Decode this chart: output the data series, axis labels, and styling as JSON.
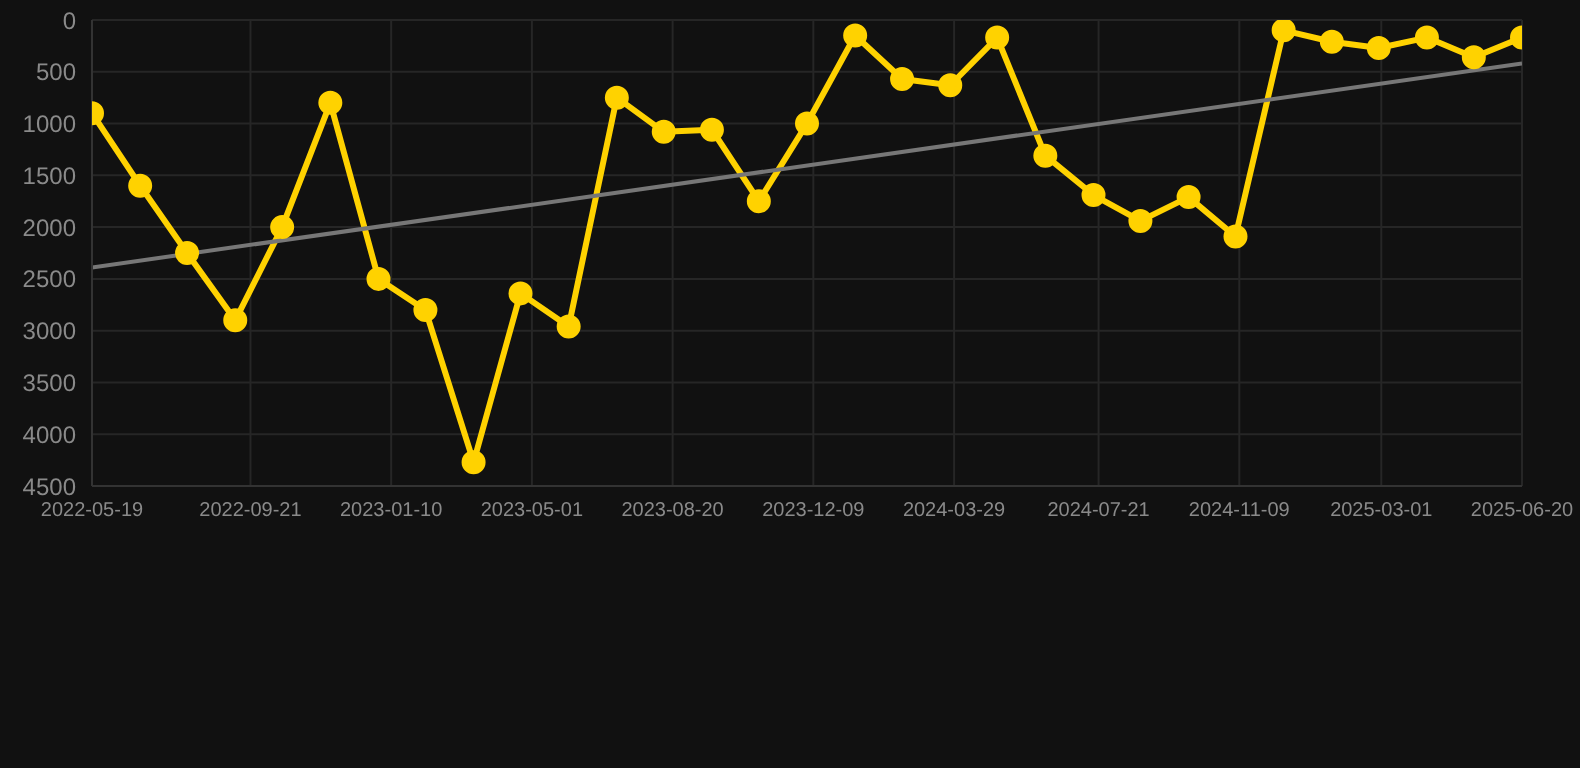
{
  "chart_data": {
    "type": "line",
    "x": [
      "2022-05-19",
      "2022-06-26",
      "2022-08-02",
      "2022-09-09",
      "2022-10-16",
      "2022-11-23",
      "2022-12-31",
      "2023-02-06",
      "2023-03-16",
      "2023-04-22",
      "2023-05-30",
      "2023-07-07",
      "2023-08-13",
      "2023-09-20",
      "2023-10-27",
      "2023-12-04",
      "2024-01-11",
      "2024-02-17",
      "2024-03-26",
      "2024-05-02",
      "2024-06-09",
      "2024-07-17",
      "2024-08-23",
      "2024-09-30",
      "2024-11-06",
      "2024-12-14",
      "2025-01-21",
      "2025-02-27",
      "2025-04-06",
      "2025-05-13",
      "2025-06-20"
    ],
    "series": [
      {
        "color": "#ffd200",
        "marker": "circle",
        "values": [
          900,
          1600,
          2250,
          2900,
          2000,
          800,
          2500,
          2800,
          4270,
          2640,
          2960,
          750,
          1080,
          1060,
          1750,
          1000,
          150,
          570,
          630,
          170,
          1310,
          1690,
          1940,
          1710,
          2090,
          100,
          210,
          270,
          170,
          360,
          170
        ]
      },
      {
        "color": "#777777",
        "marker": "none",
        "x": [
          "2022-05-19",
          "2025-06-20"
        ],
        "values": [
          2390,
          420
        ]
      }
    ],
    "xlim": [
      "2022-05-19",
      "2025-06-20"
    ],
    "xticks": [
      {
        "value": "2022-05-19",
        "label": "2022-05-19"
      },
      {
        "value": "2022-09-21",
        "label": "2022-09-21"
      },
      {
        "value": "2023-01-10",
        "label": "2023-01-10"
      },
      {
        "value": "2023-05-01",
        "label": "2023-05-01"
      },
      {
        "value": "2023-08-20",
        "label": "2023-08-20"
      },
      {
        "value": "2023-12-09",
        "label": "2023-12-09"
      },
      {
        "value": "2024-03-29",
        "label": "2024-03-29"
      },
      {
        "value": "2024-07-21",
        "label": "2024-07-21"
      },
      {
        "value": "2024-11-09",
        "label": "2024-11-09"
      },
      {
        "value": "2025-03-01",
        "label": "2025-03-01"
      },
      {
        "value": "2025-06-20",
        "label": "2025-06-20"
      }
    ],
    "ylim": [
      4500,
      0
    ],
    "yticks": [
      0,
      500,
      1000,
      1500,
      2000,
      2500,
      3000,
      3500,
      4000,
      4500
    ],
    "grid": true,
    "line_style": "solid"
  }
}
